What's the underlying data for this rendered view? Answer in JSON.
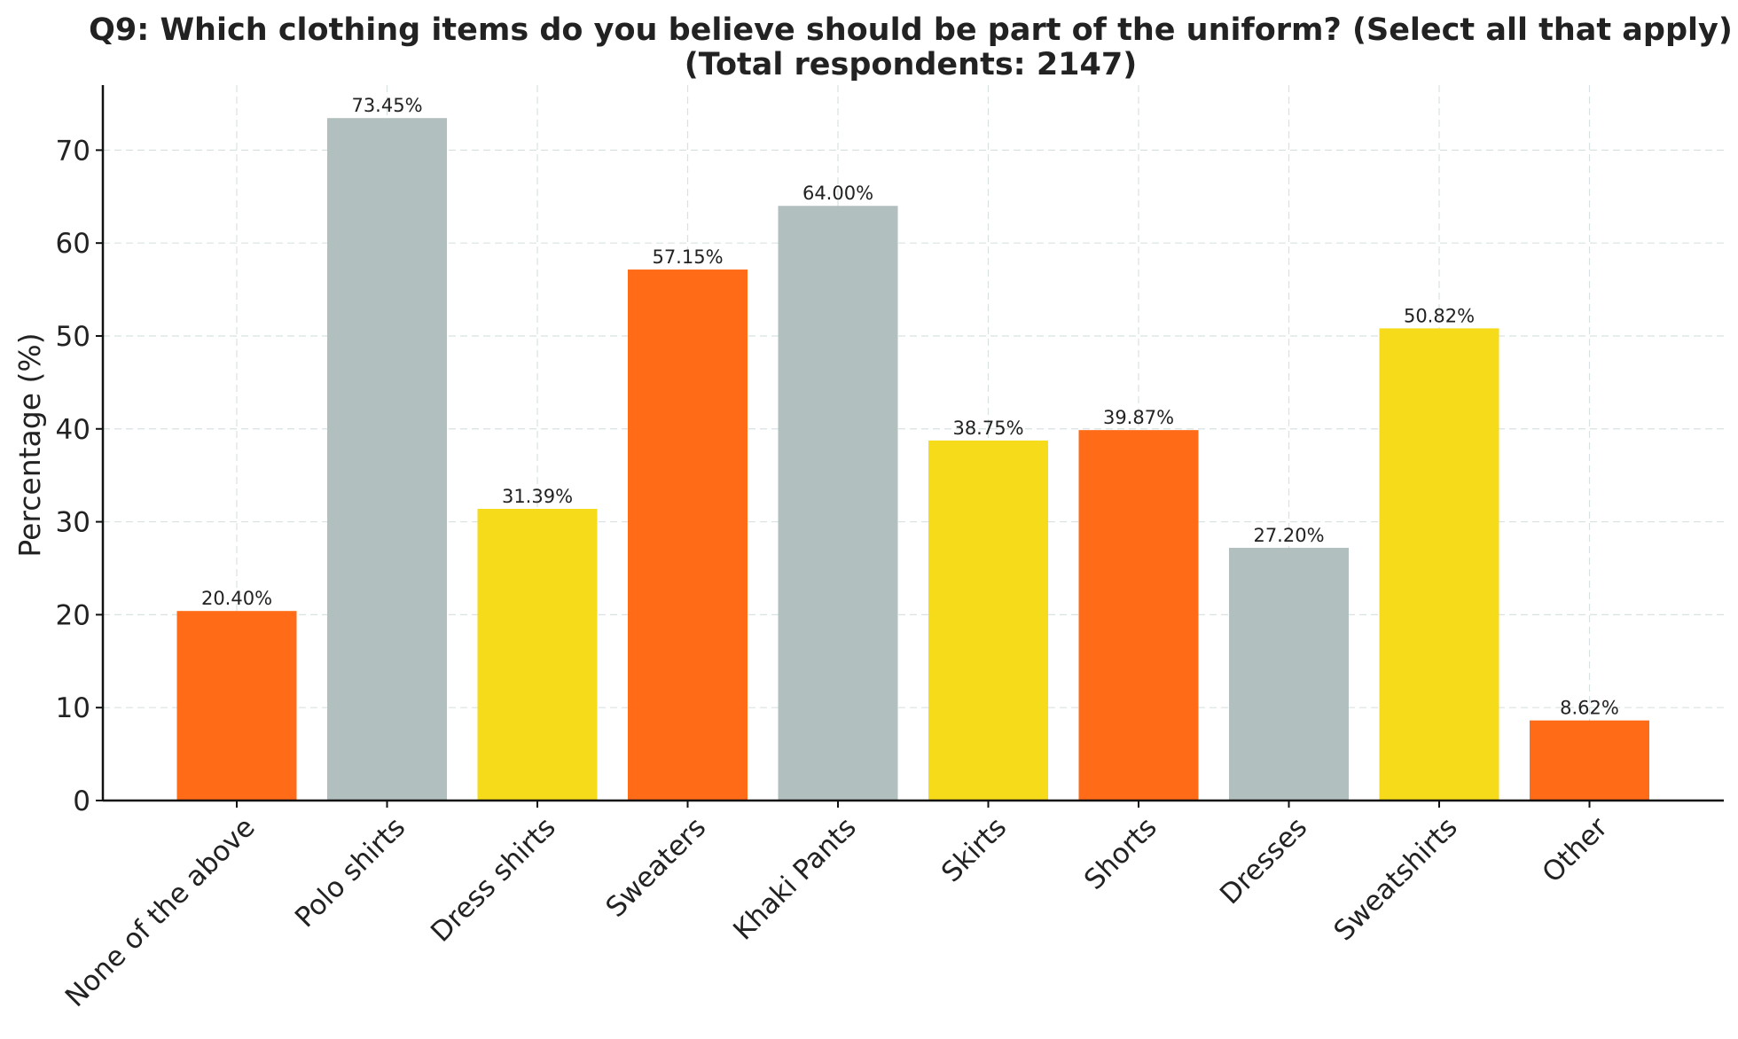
{
  "chart_data": {
    "type": "bar",
    "title": "Q9: Which clothing items do you believe should be part of the uniform? (Select all that apply)",
    "subtitle": "(Total respondents: 2147)",
    "xlabel": "",
    "ylabel": "Percentage (%)",
    "ylim": [
      0,
      77
    ],
    "yticks": [
      0,
      10,
      20,
      30,
      40,
      50,
      60,
      70
    ],
    "grid": true,
    "categories": [
      "None of the above",
      "Polo shirts",
      "Dress shirts",
      "Sweaters",
      "Khaki Pants",
      "Skirts",
      "Shorts",
      "Dresses",
      "Sweatshirts",
      "Other"
    ],
    "values": [
      20.4,
      73.45,
      31.39,
      57.15,
      64.0,
      38.75,
      39.87,
      27.2,
      50.82,
      8.62
    ],
    "data_labels": [
      "20.40%",
      "73.45%",
      "31.39%",
      "57.15%",
      "64.00%",
      "38.75%",
      "39.87%",
      "27.20%",
      "50.82%",
      "8.62%"
    ],
    "colors": [
      "#ff6b17",
      "#b1bfbe",
      "#f5db1a",
      "#ff6b17",
      "#b1bfbe",
      "#f5db1a",
      "#ff6b17",
      "#b1bfbe",
      "#f5db1a",
      "#ff6b17"
    ]
  }
}
